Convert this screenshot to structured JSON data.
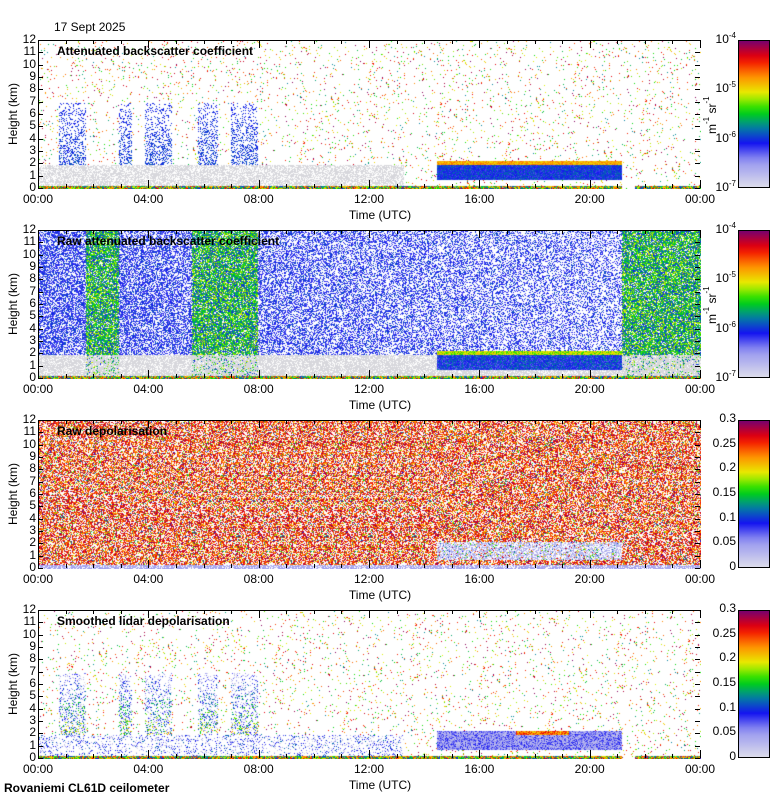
{
  "date": "17 Sept 2025",
  "footer": "Rovaniemi CL61D ceilometer",
  "chart_data": [
    {
      "type": "heatmap",
      "title": "Attenuated backscatter coefficient",
      "xlabel": "Time (UTC)",
      "ylabel": "Height (km)",
      "xticks": [
        "00:00",
        "04:00",
        "08:00",
        "12:00",
        "16:00",
        "20:00",
        "00:00"
      ],
      "yticks": [
        "0",
        "1",
        "2",
        "3",
        "4",
        "5",
        "6",
        "7",
        "8",
        "9",
        "10",
        "11",
        "12"
      ],
      "ylim": [
        0,
        12
      ],
      "colorbar": {
        "scale": "log",
        "unit": "m-1 sr-1",
        "labels": [
          "10-7",
          "10-6",
          "10-5",
          "10-4"
        ],
        "range": [
          1e-07,
          0.0001
        ]
      }
    },
    {
      "type": "heatmap",
      "title": "Raw attenuated backscatter coefficient",
      "xlabel": "Time (UTC)",
      "ylabel": "Height (km)",
      "xticks": [
        "00:00",
        "04:00",
        "08:00",
        "12:00",
        "16:00",
        "20:00",
        "00:00"
      ],
      "yticks": [
        "0",
        "1",
        "2",
        "3",
        "4",
        "5",
        "6",
        "7",
        "8",
        "9",
        "10",
        "11",
        "12"
      ],
      "ylim": [
        0,
        12
      ],
      "colorbar": {
        "scale": "log",
        "unit": "m-1 sr-1",
        "labels": [
          "10-7",
          "10-6",
          "10-5",
          "10-4"
        ],
        "range": [
          1e-07,
          0.0001
        ]
      }
    },
    {
      "type": "heatmap",
      "title": "Raw depolarisation",
      "xlabel": "Time (UTC)",
      "ylabel": "Height (km)",
      "xticks": [
        "00:00",
        "04:00",
        "08:00",
        "12:00",
        "16:00",
        "20:00",
        "00:00"
      ],
      "yticks": [
        "0",
        "1",
        "2",
        "3",
        "4",
        "5",
        "6",
        "7",
        "8",
        "9",
        "10",
        "11",
        "12"
      ],
      "ylim": [
        0,
        12
      ],
      "colorbar": {
        "scale": "linear",
        "unit": "",
        "labels": [
          "0",
          "0.05",
          "0.1",
          "0.15",
          "0.2",
          "0.25",
          "0.3"
        ],
        "range": [
          0,
          0.3
        ]
      }
    },
    {
      "type": "heatmap",
      "title": "Smoothed lidar depolarisation",
      "xlabel": "Time (UTC)",
      "ylabel": "Height (km)",
      "xticks": [
        "00:00",
        "04:00",
        "08:00",
        "12:00",
        "16:00",
        "20:00",
        "00:00"
      ],
      "yticks": [
        "0",
        "1",
        "2",
        "3",
        "4",
        "5",
        "6",
        "7",
        "8",
        "9",
        "10",
        "11",
        "12"
      ],
      "ylim": [
        0,
        12
      ],
      "colorbar": {
        "scale": "linear",
        "unit": "",
        "labels": [
          "0",
          "0.05",
          "0.1",
          "0.15",
          "0.2",
          "0.25",
          "0.3"
        ],
        "range": [
          0,
          0.3
        ]
      }
    }
  ]
}
